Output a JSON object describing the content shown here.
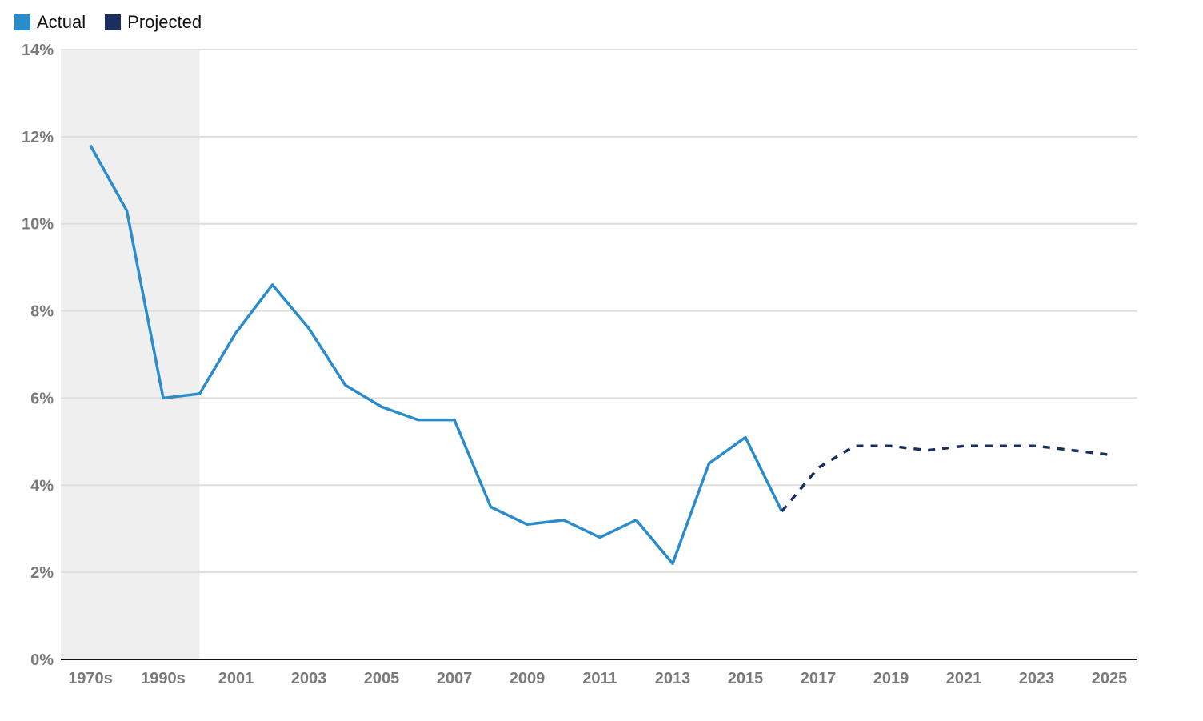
{
  "legend": {
    "actual": "Actual",
    "projected": "Projected"
  },
  "colors": {
    "actual": "#2b8ccc",
    "projected": "#1b2f5e",
    "shade": "#efefef",
    "grid": "#dddddd",
    "axis": "#111111"
  },
  "chart_data": {
    "type": "line",
    "title": "",
    "xlabel": "",
    "ylabel": "",
    "ylim": [
      0,
      14
    ],
    "yticks": [
      "0%",
      "2%",
      "4%",
      "6%",
      "8%",
      "10%",
      "12%",
      "14%"
    ],
    "yticks_values": [
      0,
      2,
      4,
      6,
      8,
      10,
      12,
      14
    ],
    "x_categories": [
      "1970s",
      "1980s",
      "1990s",
      "2000",
      "2001",
      "2002",
      "2003",
      "2004",
      "2005",
      "2006",
      "2007",
      "2008",
      "2009",
      "2010",
      "2011",
      "2012",
      "2013",
      "2014",
      "2015",
      "2016",
      "2017",
      "2018",
      "2019",
      "2020",
      "2021",
      "2022",
      "2023",
      "2024",
      "2025"
    ],
    "x_tick_labels": [
      "1970s",
      "",
      "1990s",
      "",
      "2001",
      "",
      "2003",
      "",
      "2005",
      "",
      "2007",
      "",
      "2009",
      "",
      "2011",
      "",
      "2013",
      "",
      "2015",
      "",
      "2017",
      "",
      "2019",
      "",
      "2021",
      "",
      "2023",
      "",
      "2025"
    ],
    "shaded_region": [
      "1970s",
      "2000"
    ],
    "series": [
      {
        "name": "Actual",
        "style": "solid",
        "x": [
          "1970s",
          "1980s",
          "1990s",
          "2000",
          "2001",
          "2002",
          "2003",
          "2004",
          "2005",
          "2006",
          "2007",
          "2008",
          "2009",
          "2010",
          "2011",
          "2012",
          "2013",
          "2014",
          "2015",
          "2016"
        ],
        "values": [
          11.8,
          10.3,
          6.0,
          6.1,
          7.5,
          8.6,
          7.6,
          6.3,
          5.8,
          5.5,
          5.5,
          3.5,
          3.1,
          3.2,
          2.8,
          3.2,
          2.2,
          4.5,
          5.1,
          3.4
        ]
      },
      {
        "name": "Projected",
        "style": "dashed",
        "x": [
          "2016",
          "2017",
          "2018",
          "2019",
          "2020",
          "2021",
          "2022",
          "2023",
          "2024",
          "2025"
        ],
        "values": [
          3.4,
          4.4,
          4.9,
          4.9,
          4.8,
          4.9,
          4.9,
          4.9,
          4.8,
          4.7
        ]
      }
    ]
  }
}
